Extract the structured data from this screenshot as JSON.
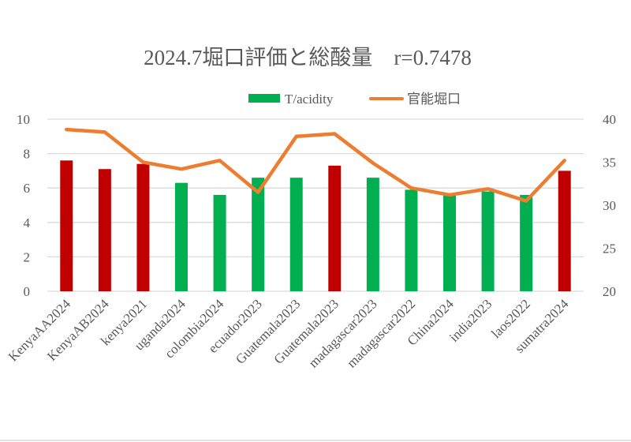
{
  "chart_data": {
    "type": "bar+line",
    "title": "2024.7堀口評価と総酸量　r=0.7478",
    "categories": [
      "KenyaAA2024",
      "KenyaAB2024",
      "kenya2021",
      "uganda2024",
      "colombia2024",
      "ecuador2023",
      "Guatemala2023",
      "Guatemala2023",
      "madagascar2023",
      "madagascar2022",
      "China2024",
      "india2023",
      "laos2022",
      "sumatra2024"
    ],
    "series": [
      {
        "name": "T/acidity",
        "type": "bar",
        "axis": "left",
        "values": [
          7.6,
          7.1,
          7.4,
          6.3,
          5.6,
          6.6,
          6.6,
          7.3,
          6.6,
          5.9,
          5.6,
          5.8,
          5.6,
          7.0
        ],
        "highlight": [
          true,
          true,
          true,
          false,
          false,
          false,
          false,
          true,
          false,
          false,
          false,
          false,
          false,
          true
        ]
      },
      {
        "name": "官能堀口",
        "type": "line",
        "axis": "right",
        "values": [
          38.8,
          38.5,
          35.0,
          34.2,
          35.2,
          31.5,
          38.0,
          38.3,
          34.9,
          32.0,
          31.2,
          31.9,
          30.5,
          35.2
        ]
      }
    ],
    "y_left": {
      "range": [
        0,
        10
      ],
      "ticks": [
        "0",
        "2",
        "4",
        "6",
        "8",
        "10"
      ]
    },
    "y_right": {
      "range": [
        20,
        40
      ],
      "ticks": [
        "20",
        "25",
        "30",
        "35",
        "40"
      ]
    },
    "grid": true,
    "legend_position": "top-right",
    "colors": {
      "bar": "#00b050",
      "bar_highlight": "#c00000",
      "line": "#ed7d31",
      "grid": "#d9d9d9",
      "text": "#595959"
    }
  }
}
